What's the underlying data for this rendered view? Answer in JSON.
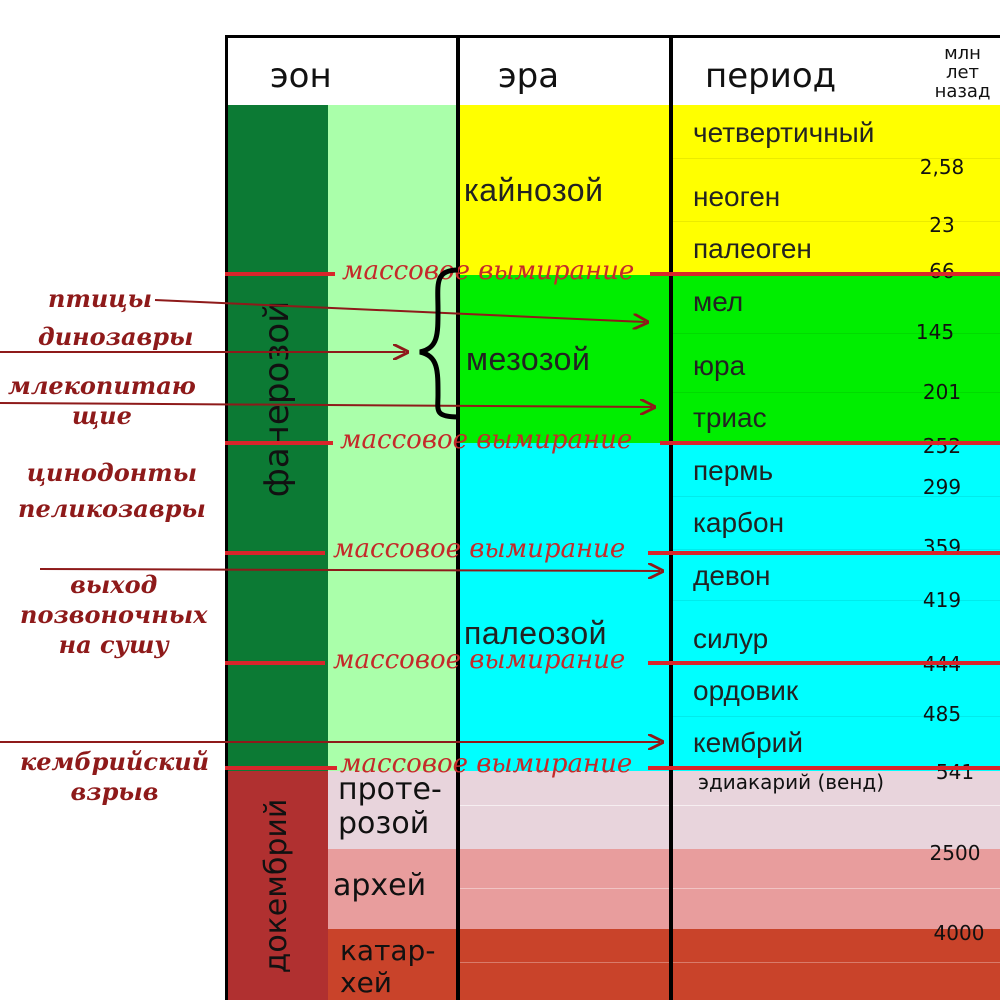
{
  "header": {
    "eon": "эон",
    "era": "эра",
    "period": "период",
    "age_unit": "млн\nлет\nназад"
  },
  "eons": {
    "phanerozoic": "фанерозой",
    "precambrian": "докембрий"
  },
  "eon_subdivisions": {
    "proterozoic": "проте-\nрозой",
    "archean": "архей",
    "katarchean": "катар-\nхей"
  },
  "eras": {
    "cenozoic": "кайнозой",
    "mesozoic": "мезозой",
    "paleozoic": "палеозой"
  },
  "periods": [
    "четвертичный",
    "неоген",
    "палеоген",
    "мел",
    "юра",
    "триас",
    "пермь",
    "карбон",
    "девон",
    "силур",
    "ордовик",
    "кембрий"
  ],
  "ediacaran": "эдиакарий (венд)",
  "ages": [
    "2,58",
    "23",
    "66",
    "145",
    "201",
    "252",
    "299",
    "359",
    "419",
    "444",
    "485",
    "541",
    "2500",
    "4000"
  ],
  "extinction_label": "массовое вымирание",
  "annotations": {
    "birds": "птицы",
    "dinosaurs": "динозавры",
    "mammals": "млекопитаю\nщие",
    "cynodonts": "цинодонты\nпеликозавры",
    "land": "выход\nпозвоночных\nна сушу",
    "cambrian": "кембрийский\nвзрыв"
  },
  "colors": {
    "cenozoic": "#ffff00",
    "mesozoic": "#00ee00",
    "paleozoic": "#00ffff",
    "phanerozoic_dark": "#0c7a34",
    "phanerozoic_light": "#aaffaa",
    "proterozoic": "#e8d4dc",
    "archean": "#e89d9d",
    "katarchean": "#c9432a",
    "precambrian_dark": "#b03030",
    "extinction": "#d8262b",
    "annotation": "#8e1a1a"
  }
}
